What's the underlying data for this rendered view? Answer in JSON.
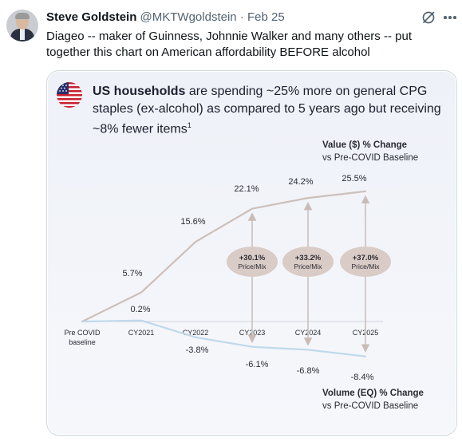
{
  "tweet": {
    "display_name": "Steve Goldstein",
    "handle": "@MKTWgoldstein",
    "separator": "·",
    "date": "Feb 25",
    "text": "Diageo -- maker of Guinness, Johnnie Walker and many others -- put together this chart on American affordability BEFORE alcohol",
    "icons": [
      "grok-icon",
      "more-icon",
      "flag-icon"
    ]
  },
  "slide": {
    "headline_strong": "US households",
    "headline_rest": " are spending ~25% more on general CPG staples (ex-alcohol) as compared to 5 years ago but receiving ~8% fewer items",
    "headline_footnote": "1"
  },
  "chart_data": {
    "type": "line",
    "x": [
      "Pre COVID baseline",
      "CY2021",
      "CY2022",
      "CY2023",
      "CY2024",
      "CY2025"
    ],
    "x_tick_labels": [
      [
        "Pre COVID",
        "baseline"
      ],
      [
        "CY2021"
      ],
      [
        "CY2022"
      ],
      [
        "CY2023"
      ],
      [
        "CY2024"
      ],
      [
        "CY2025"
      ]
    ],
    "series": [
      {
        "name": "Value ($) % Change",
        "subtitle": "vs Pre-COVID Baseline",
        "values": [
          0,
          5.7,
          15.6,
          22.1,
          24.2,
          25.5
        ],
        "labels": [
          "",
          "5.7%",
          "15.6%",
          "22.1%",
          "24.2%",
          "25.5%"
        ],
        "color": "#cdbfb9"
      },
      {
        "name": "Volume (EQ) % Change",
        "subtitle": "vs Pre-COVID Baseline",
        "values": [
          0,
          0.2,
          -3.8,
          -6.1,
          -6.8,
          -8.4
        ],
        "labels": [
          "",
          "0.2%",
          "-3.8%",
          "-6.1%",
          "-6.8%",
          "-8.4%"
        ],
        "color": "#bfd9ea"
      }
    ],
    "annotations": [
      {
        "x": "CY2023",
        "value": "+30.1%",
        "label": "Price/Mix"
      },
      {
        "x": "CY2024",
        "value": "+33.2%",
        "label": "Price/Mix"
      },
      {
        "x": "CY2025",
        "value": "+37.0%",
        "label": "Price/Mix"
      }
    ],
    "colors": {
      "ellipse": "#d9cbc5",
      "arrow": "#c9bcb6",
      "axis": "#d4d4dc"
    },
    "grid": false
  }
}
